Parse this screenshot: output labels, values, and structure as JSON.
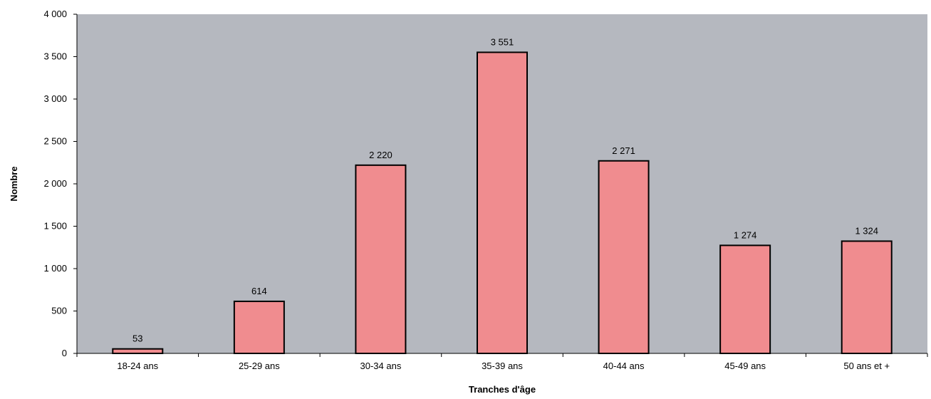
{
  "chart_data": {
    "type": "bar",
    "title": "",
    "xlabel": "Tranches d'âge",
    "ylabel": "Nombre",
    "categories": [
      "18-24 ans",
      "25-29 ans",
      "30-34 ans",
      "35-39 ans",
      "40-44 ans",
      "45-49 ans",
      "50 ans et +"
    ],
    "values": [
      53,
      614,
      2220,
      3551,
      2271,
      1274,
      1324
    ],
    "value_labels": [
      "53",
      "614",
      "2 220",
      "3 551",
      "2 271",
      "1 274",
      "1 324"
    ],
    "ylim": [
      0,
      4000
    ],
    "y_ticks": [
      0,
      500,
      1000,
      1500,
      2000,
      2500,
      3000,
      3500,
      4000
    ],
    "y_tick_labels": [
      "0",
      "500",
      "1 000",
      "1 500",
      "2 000",
      "2 500",
      "3 000",
      "3 500",
      "4 000"
    ],
    "grid": false,
    "legend": "none",
    "colors": {
      "plot_background": "#b5b8bf",
      "bar_fill": "#f08c8f",
      "bar_stroke": "#000000"
    }
  }
}
